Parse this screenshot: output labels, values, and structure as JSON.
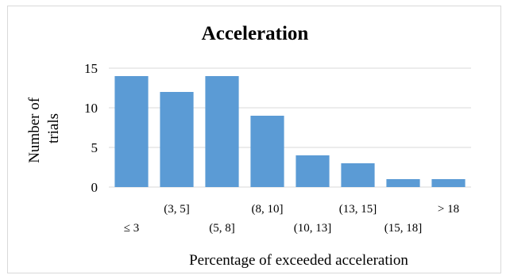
{
  "chart_data": {
    "type": "bar",
    "title": "Acceleration",
    "xlabel": "Percentage of exceeded acceleration",
    "ylabel_lines": [
      "Number of",
      "trials"
    ],
    "categories": [
      "≤ 3",
      "(3, 5]",
      "(5, 8]",
      "(8, 10]",
      "(10, 13]",
      "(13, 15]",
      "(15, 18]",
      "> 18"
    ],
    "values": [
      14,
      12,
      14,
      9,
      4,
      3,
      1,
      1
    ],
    "ylim": [
      0,
      15
    ],
    "yticks": [
      0,
      5,
      10,
      15
    ],
    "grid": true,
    "bar_color": "#5b9bd5",
    "legend": "none"
  }
}
